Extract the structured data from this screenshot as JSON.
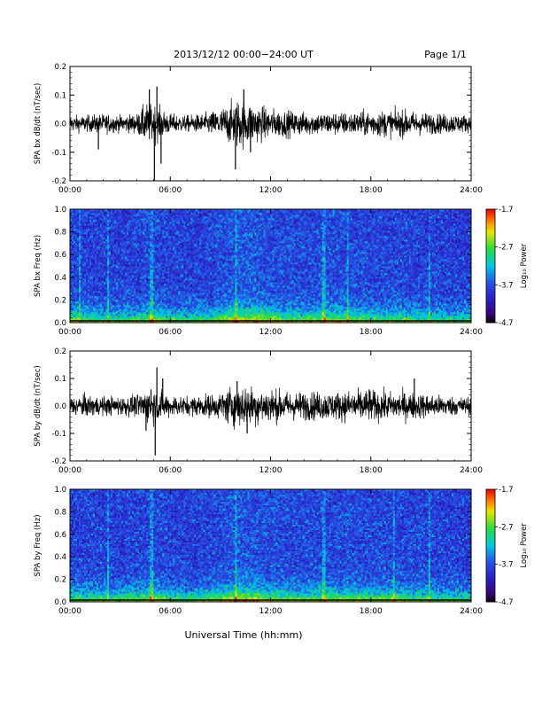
{
  "header": {
    "title": "2013/12/12  00:00−24:00 UT",
    "page": "Page 1/1"
  },
  "footer": {
    "xlabel": "Universal Time (hh:mm)"
  },
  "colors": {
    "background": "#ffffff",
    "axis": "#000000",
    "trace": "#000000"
  },
  "colorbar": {
    "label": "Log₁₀ Power",
    "ticks": [
      "-1.7",
      "-2.7",
      "-3.7",
      "-4.7"
    ],
    "range": [
      -4.7,
      -1.7
    ]
  },
  "chart_data": [
    {
      "type": "line",
      "name": "bx-waveform",
      "ylabel": "SPA bx dB/dt (nT/sec)",
      "xlim": [
        0,
        24
      ],
      "ylim": [
        -0.2,
        0.2
      ],
      "x_ticks": [
        "00:00",
        "06:00",
        "12:00",
        "18:00",
        "24:00"
      ],
      "y_ticks": [
        "0.2",
        "0.1",
        "0.0",
        "-0.1",
        "-0.2"
      ],
      "envelope": {
        "x_hours": [
          0,
          1,
          2,
          3,
          4,
          4.5,
          5,
          5.5,
          6,
          7,
          8,
          9,
          9.5,
          10,
          10.5,
          11,
          12,
          13,
          14,
          15,
          16,
          17,
          18,
          19,
          20,
          21,
          22,
          23,
          24
        ],
        "amplitude": [
          0.025,
          0.025,
          0.03,
          0.025,
          0.03,
          0.06,
          0.06,
          0.045,
          0.03,
          0.025,
          0.03,
          0.045,
          0.06,
          0.075,
          0.07,
          0.06,
          0.045,
          0.04,
          0.035,
          0.035,
          0.035,
          0.035,
          0.04,
          0.04,
          0.04,
          0.035,
          0.03,
          0.03,
          0.025
        ]
      },
      "spikes": [
        {
          "x": 1.7,
          "y": -0.09
        },
        {
          "x": 4.75,
          "y": 0.12
        },
        {
          "x": 5.05,
          "y": -0.21
        },
        {
          "x": 5.2,
          "y": 0.13
        },
        {
          "x": 5.45,
          "y": -0.14
        },
        {
          "x": 9.9,
          "y": -0.16
        },
        {
          "x": 10.4,
          "y": 0.12
        },
        {
          "x": 10.8,
          "y": -0.1
        }
      ]
    },
    {
      "type": "heatmap",
      "name": "bx-spectrogram",
      "ylabel": "SPA bx Freq (Hz)",
      "xlim": [
        0,
        24
      ],
      "ylim": [
        0.0,
        1.0
      ],
      "x_ticks": [
        "00:00",
        "06:00",
        "12:00",
        "18:00",
        "24:00"
      ],
      "y_ticks": [
        "1.0",
        "0.8",
        "0.6",
        "0.4",
        "0.2",
        "0.0"
      ],
      "zlim": [
        -4.7,
        -1.7
      ],
      "activity": {
        "x_hours": [
          0,
          1,
          2,
          3,
          4,
          5,
          6,
          7,
          8,
          9,
          10,
          11,
          12,
          13,
          14,
          15,
          16,
          17,
          18,
          19,
          20,
          21,
          22,
          23,
          24
        ],
        "level": [
          0.5,
          0.4,
          0.35,
          0.35,
          0.45,
          0.55,
          0.4,
          0.35,
          0.4,
          0.55,
          0.85,
          0.8,
          0.65,
          0.55,
          0.5,
          0.55,
          0.6,
          0.55,
          0.45,
          0.45,
          0.45,
          0.4,
          0.35,
          0.3,
          0.3
        ]
      },
      "lines_hours": [
        0.6,
        2.3,
        4.9,
        9.9,
        15.2,
        16.6,
        21.5
      ]
    },
    {
      "type": "line",
      "name": "by-waveform",
      "ylabel": "SPA by dB/dt (nT/sec)",
      "xlim": [
        0,
        24
      ],
      "ylim": [
        -0.2,
        0.2
      ],
      "x_ticks": [
        "00:00",
        "06:00",
        "12:00",
        "18:00",
        "24:00"
      ],
      "y_ticks": [
        "0.2",
        "0.1",
        "0.0",
        "-0.1",
        "-0.2"
      ],
      "envelope": {
        "x_hours": [
          0,
          1,
          2,
          3,
          4,
          4.5,
          5,
          5.5,
          6,
          7,
          8,
          9,
          9.5,
          10,
          10.5,
          11,
          12,
          13,
          14,
          15,
          16,
          17,
          18,
          19,
          20,
          21,
          22,
          23,
          24
        ],
        "amplitude": [
          0.03,
          0.035,
          0.03,
          0.03,
          0.035,
          0.05,
          0.055,
          0.045,
          0.035,
          0.03,
          0.035,
          0.04,
          0.06,
          0.065,
          0.065,
          0.06,
          0.055,
          0.045,
          0.045,
          0.045,
          0.045,
          0.05,
          0.05,
          0.045,
          0.045,
          0.04,
          0.035,
          0.03,
          0.03
        ]
      },
      "spikes": [
        {
          "x": 4.55,
          "y": -0.09
        },
        {
          "x": 4.85,
          "y": 0.06
        },
        {
          "x": 5.1,
          "y": -0.18
        },
        {
          "x": 5.2,
          "y": 0.14
        },
        {
          "x": 5.55,
          "y": 0.1
        },
        {
          "x": 10.0,
          "y": 0.09
        },
        {
          "x": 10.6,
          "y": -0.1
        },
        {
          "x": 17.9,
          "y": 0.06
        },
        {
          "x": 20.6,
          "y": 0.1
        }
      ]
    },
    {
      "type": "heatmap",
      "name": "by-spectrogram",
      "ylabel": "SPA by Freq (Hz)",
      "xlim": [
        0,
        24
      ],
      "ylim": [
        0.0,
        1.0
      ],
      "x_ticks": [
        "00:00",
        "06:00",
        "12:00",
        "18:00",
        "24:00"
      ],
      "y_ticks": [
        "1.0",
        "0.8",
        "0.6",
        "0.4",
        "0.2",
        "0.0"
      ],
      "zlim": [
        -4.7,
        -1.7
      ],
      "activity": {
        "x_hours": [
          0,
          1,
          2,
          3,
          4,
          5,
          6,
          7,
          8,
          9,
          10,
          11,
          12,
          13,
          14,
          15,
          16,
          17,
          18,
          19,
          20,
          21,
          22,
          23,
          24
        ],
        "level": [
          0.45,
          0.4,
          0.4,
          0.4,
          0.45,
          0.55,
          0.4,
          0.35,
          0.4,
          0.55,
          0.8,
          0.75,
          0.6,
          0.5,
          0.5,
          0.5,
          0.55,
          0.55,
          0.5,
          0.5,
          0.5,
          0.45,
          0.4,
          0.35,
          0.3
        ]
      },
      "lines_hours": [
        2.3,
        4.9,
        9.9,
        15.2,
        19.4,
        21.5
      ]
    }
  ]
}
